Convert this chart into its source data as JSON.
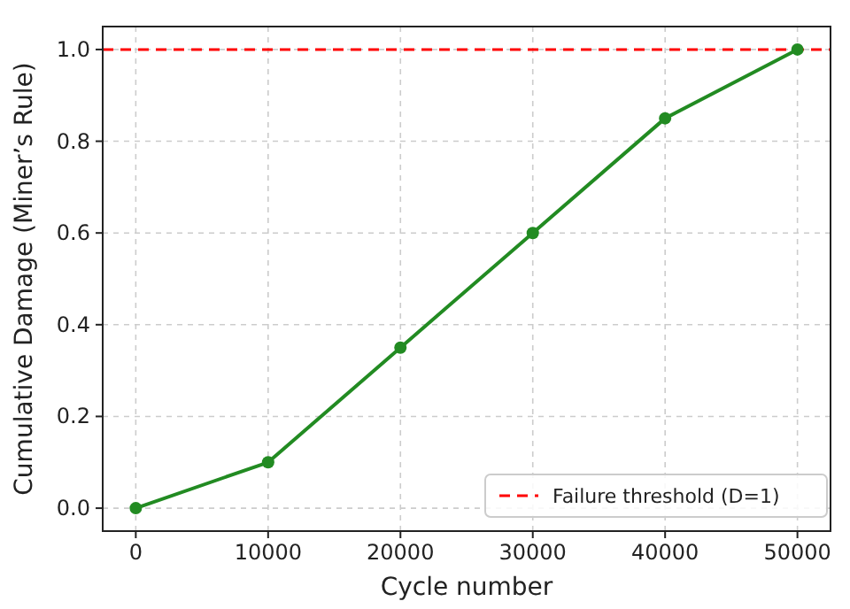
{
  "chart_data": {
    "type": "line",
    "xlabel": "Cycle number",
    "ylabel": "Cumulative Damage (Miner’s Rule)",
    "x": [
      0,
      10000,
      20000,
      30000,
      40000,
      50000
    ],
    "series": [
      {
        "color": "#228b22",
        "values": [
          0,
          0.1,
          0.35,
          0.6,
          0.85,
          1.0
        ]
      }
    ],
    "xlim": [
      -2500,
      52500
    ],
    "xticks": [
      0,
      10000,
      20000,
      30000,
      40000,
      50000
    ],
    "ylim": [
      -0.05,
      1.05
    ],
    "yticks": [
      {
        "value": 0,
        "label": "0.0"
      },
      {
        "value": 0.2,
        "label": "0.2"
      },
      {
        "value": 0.4,
        "label": "0.4"
      },
      {
        "value": 0.6,
        "label": "0.6"
      },
      {
        "value": 0.8,
        "label": "0.8"
      },
      {
        "value": 1,
        "label": "1.0"
      }
    ],
    "ref_lines": [
      {
        "axis": "y",
        "value": 1,
        "label": "Failure threshold (D=1)",
        "color": "#ff0000",
        "line_style": "dashed"
      }
    ],
    "grid": true,
    "legend": "bottom right",
    "marker": "circle",
    "line_style": "solid"
  }
}
